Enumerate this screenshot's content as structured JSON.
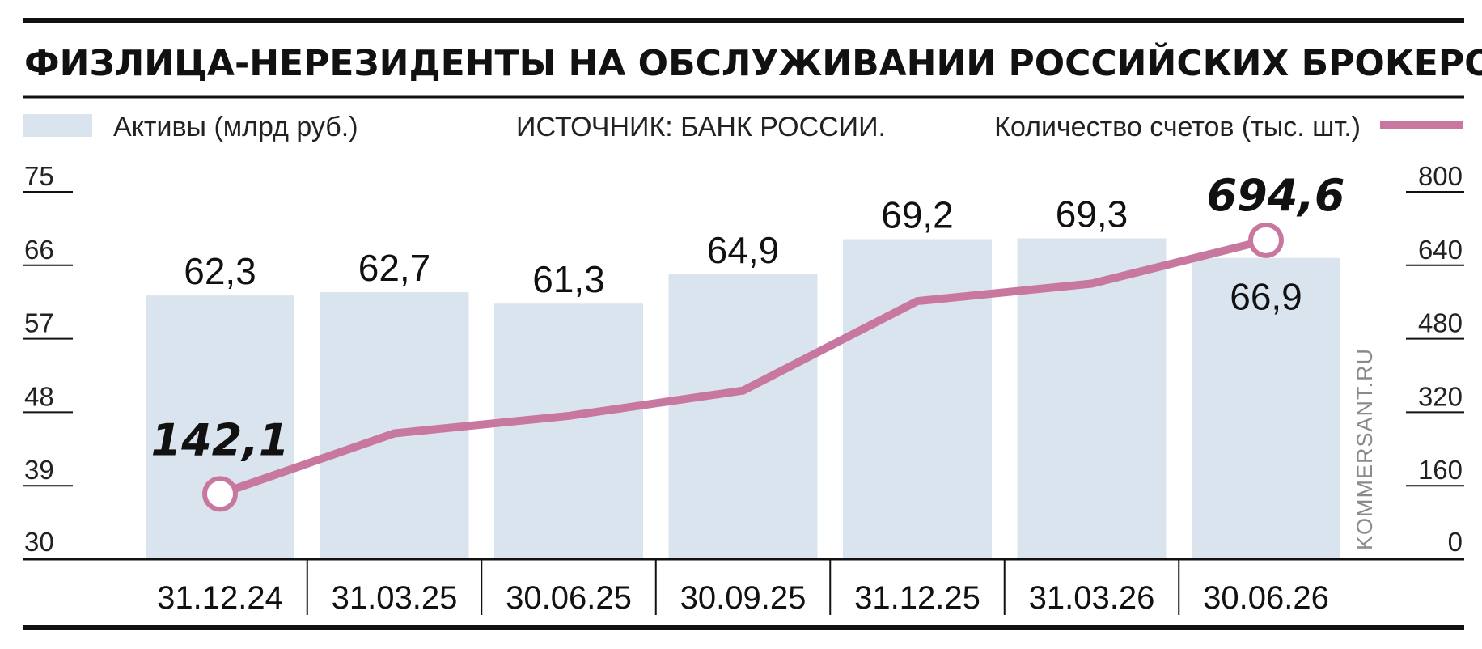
{
  "title": "ФИЗЛИЦА-НЕРЕЗИДЕНТЫ НА ОБСЛУЖИВАНИИ РОССИЙСКИХ БРОКЕРОВ",
  "source": "ИСТОЧНИК: БАНК РОССИИ.",
  "credit": "KOMMERSANT.RU",
  "colors": {
    "bars": "#d9e4ee",
    "line": "#c8789f",
    "text": "#111111",
    "rule": "#111111"
  },
  "chart_data": {
    "type": "bar",
    "categories": [
      "31.12.24",
      "31.03.25",
      "30.06.25",
      "30.09.25",
      "31.12.25",
      "31.03.26",
      "30.06.26"
    ],
    "series": [
      {
        "name": "Активы (млрд руб.)",
        "type": "bar",
        "axis": "left",
        "values": [
          62.3,
          62.7,
          61.3,
          64.9,
          69.2,
          69.3,
          66.9
        ],
        "value_labels": [
          "62,3",
          "62,7",
          "61,3",
          "64,9",
          "69,2",
          "69,3",
          "66,9"
        ]
      },
      {
        "name": "Количество счетов (тыс. шт.)",
        "type": "line",
        "axis": "right",
        "values": [
          142.1,
          274,
          312,
          367,
          562,
          600,
          694.6
        ],
        "labeled_points": [
          {
            "index": 0,
            "label": "142,1"
          },
          {
            "index": 6,
            "label": "694,6"
          }
        ]
      }
    ],
    "y_left": {
      "min": 30,
      "max": 75,
      "ticks": [
        75,
        66,
        57,
        48,
        39,
        30
      ]
    },
    "y_right": {
      "min": 0,
      "max": 800,
      "ticks": [
        800,
        640,
        480,
        320,
        160,
        0
      ]
    },
    "legend": {
      "left": "Активы (млрд руб.)",
      "right": "Количество счетов (тыс. шт.)",
      "placement": "top"
    }
  }
}
